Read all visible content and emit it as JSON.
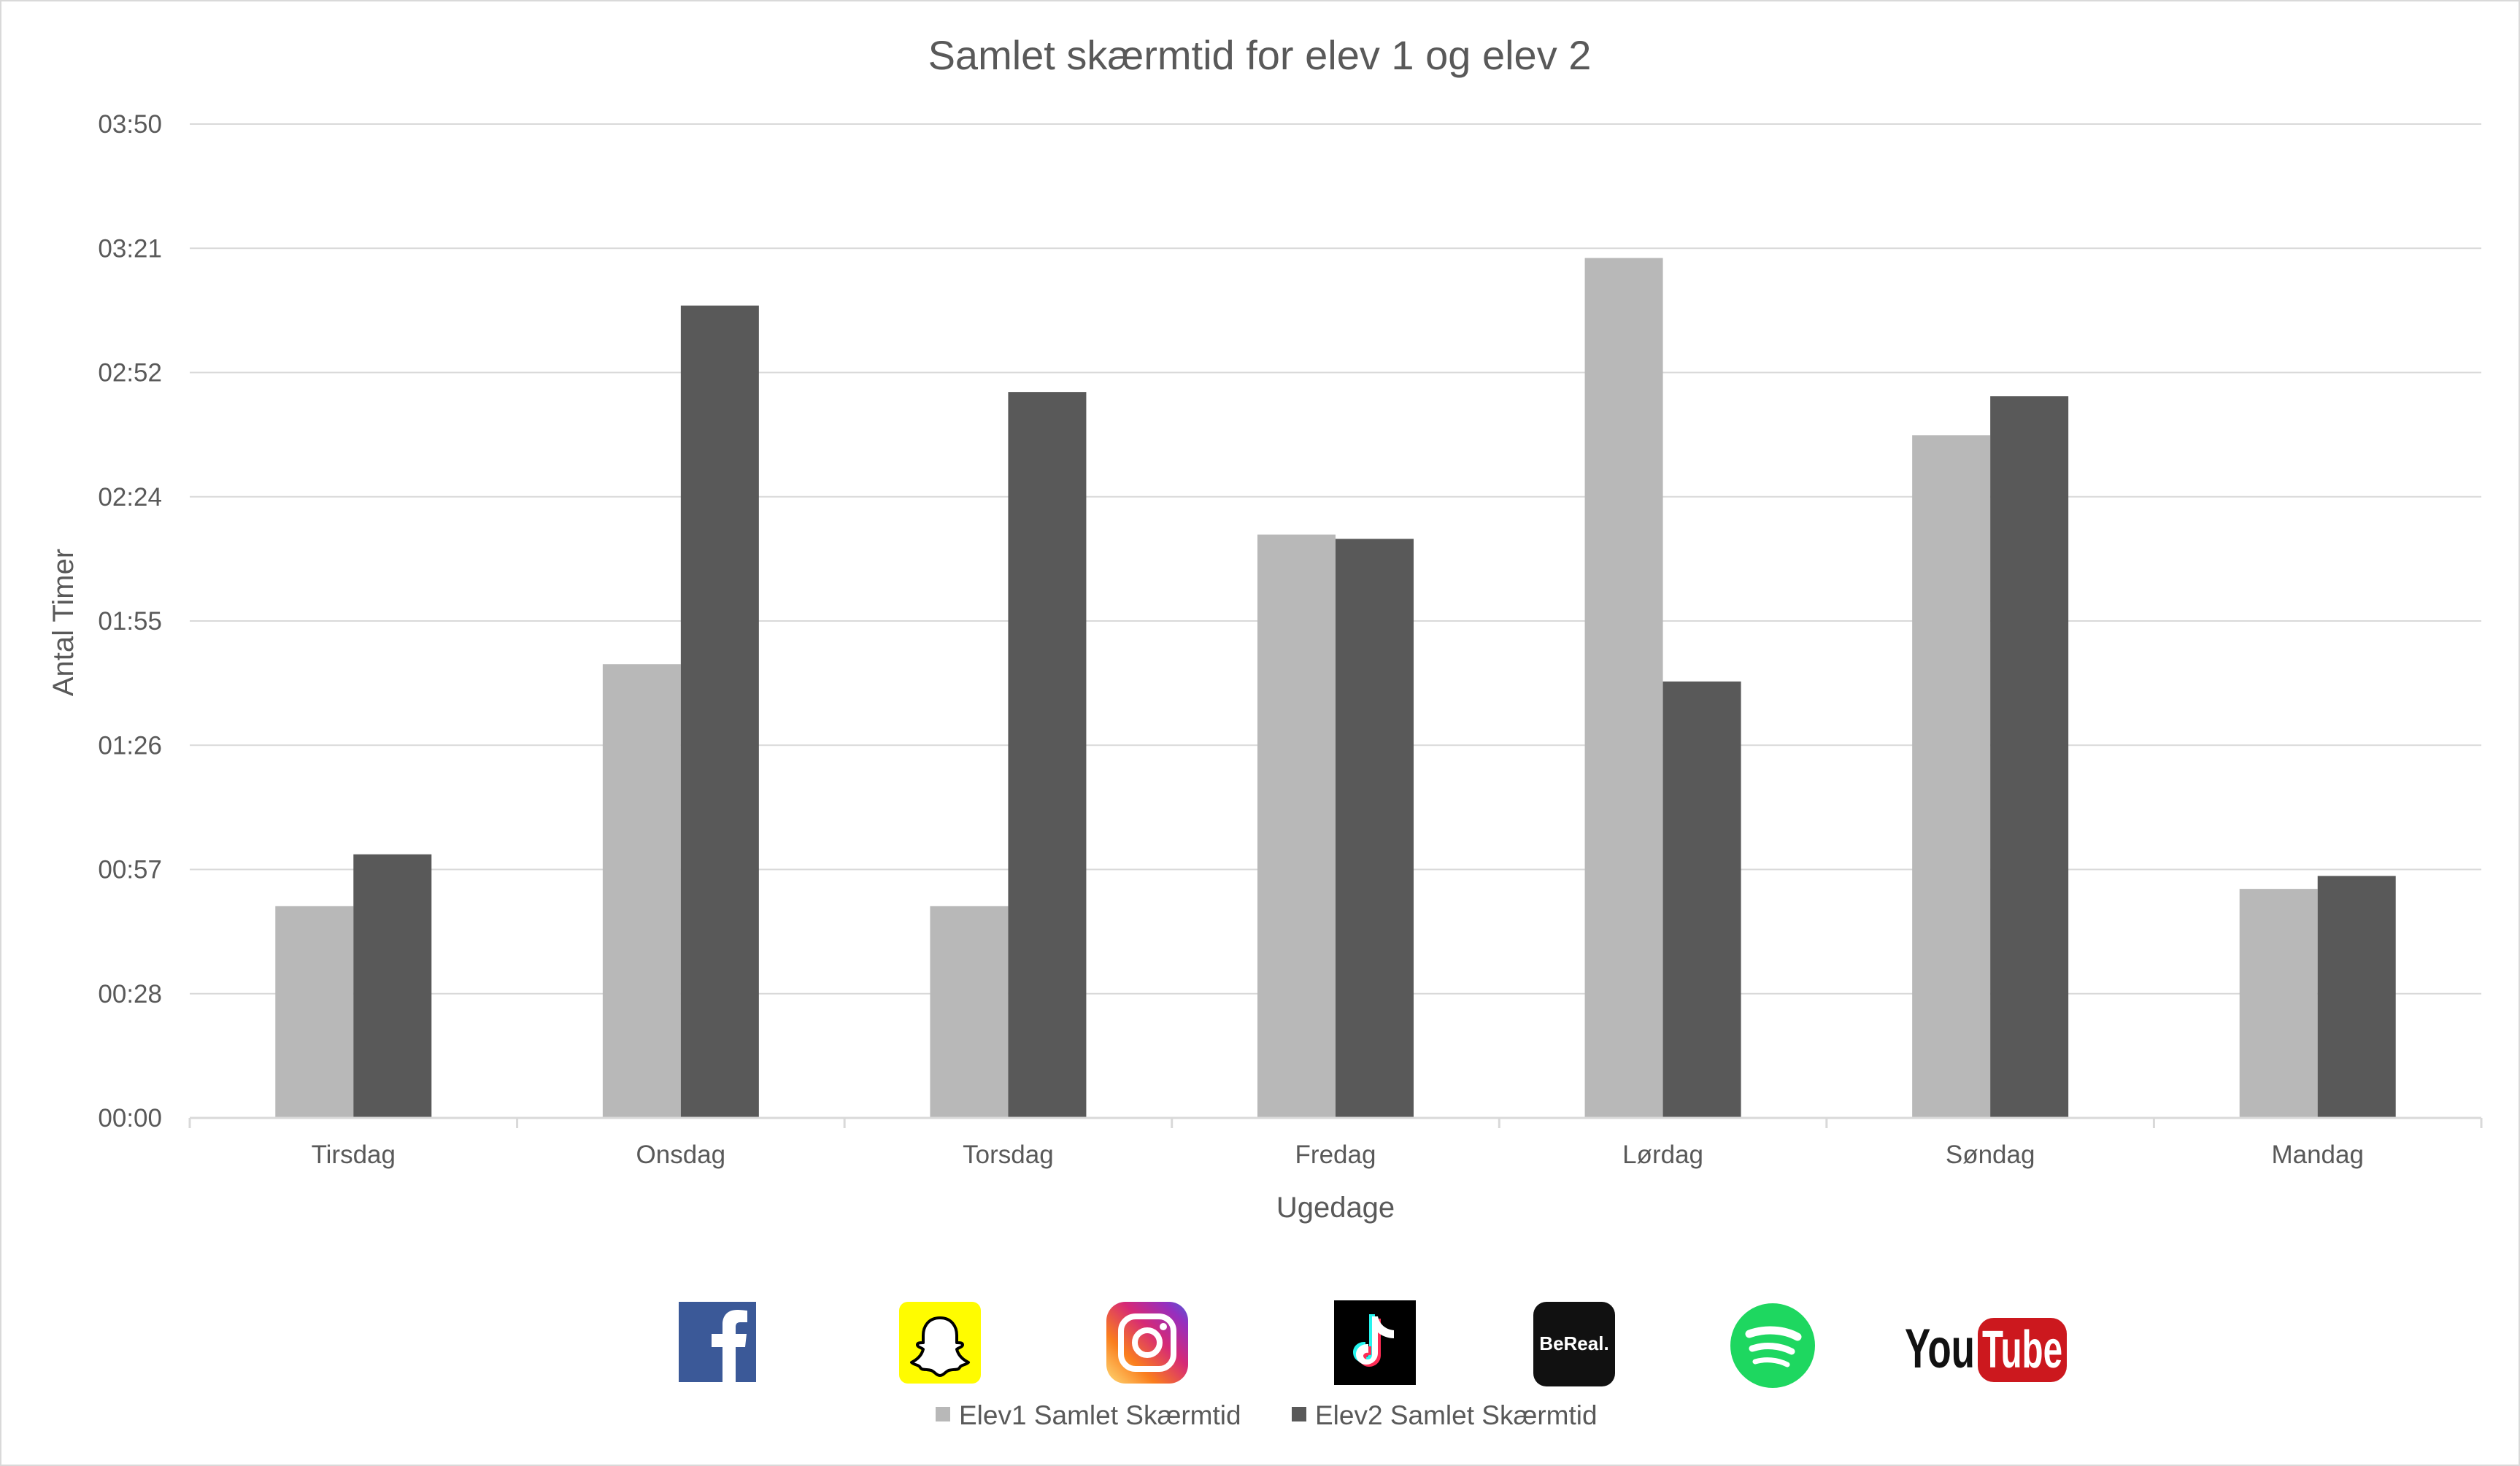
{
  "chart_data": {
    "type": "bar",
    "title": "Samlet skærmtid for elev 1 og elev 2",
    "xlabel": "Ugedage",
    "ylabel": "Antal Timer",
    "categories": [
      "Tirsdag",
      "Onsdag",
      "Torsdag",
      "Fredag",
      "Lørdag",
      "Søndag",
      "Mandag"
    ],
    "y_ticks": [
      "00:00",
      "00:28",
      "00:57",
      "01:26",
      "01:55",
      "02:24",
      "02:52",
      "03:21",
      "03:50"
    ],
    "y_unit": "minutes",
    "ylim": [
      0,
      230
    ],
    "series": [
      {
        "name": "Elev1 Samlet Skærmtid",
        "values": [
          49,
          105,
          49,
          135,
          199,
          158,
          53
        ],
        "color": "#b8b8b8"
      },
      {
        "name": "Elev2 Samlet Skærmtid",
        "values": [
          61,
          188,
          168,
          134,
          101,
          167,
          56
        ],
        "color": "#595959"
      }
    ],
    "grid": true,
    "legend_position": "bottom"
  },
  "colors": {
    "gridline": "#d9d9d9",
    "text": "#595959",
    "border": "#d9d9d9"
  },
  "icons": [
    "facebook-logo",
    "snapchat-logo",
    "instagram-logo",
    "tiktok-logo",
    "bereal-logo",
    "spotify-logo",
    "youtube-logo"
  ],
  "logo_text": {
    "bereal": "BeReal.",
    "youtube_you": "You",
    "youtube_tube": "Tube"
  }
}
